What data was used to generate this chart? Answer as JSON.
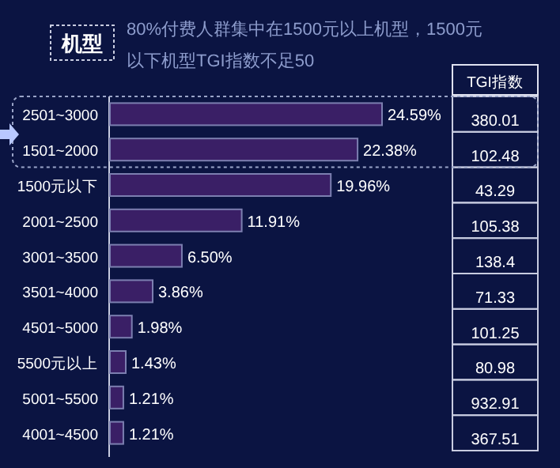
{
  "chart_data": {
    "type": "bar",
    "orientation": "horizontal",
    "title": "机型",
    "subtitle": "80%付费人群集中在1500元以上机型，1500元以下机型TGI指数不足50",
    "categories": [
      "2501~3000",
      "1501~2000",
      "1500元以下",
      "2001~2500",
      "3001~3500",
      "3501~4000",
      "4501~5000",
      "5500元以上",
      "5001~5500",
      "4001~4500"
    ],
    "values": [
      24.59,
      22.38,
      19.96,
      11.91,
      6.5,
      3.86,
      1.98,
      1.43,
      1.21,
      1.21
    ],
    "value_labels": [
      "24.59%",
      "22.38%",
      "19.96%",
      "11.91%",
      "6.50%",
      "3.86%",
      "1.98%",
      "1.43%",
      "1.21%",
      "1.21%"
    ],
    "color": "#3a1f66",
    "annotations": [
      "TGI指数",
      "380.01",
      "102.48",
      "43.29",
      "105.38",
      "138.4",
      "71.33",
      "101.25",
      "80.98",
      "932.91",
      "367.51"
    ]
  }
}
